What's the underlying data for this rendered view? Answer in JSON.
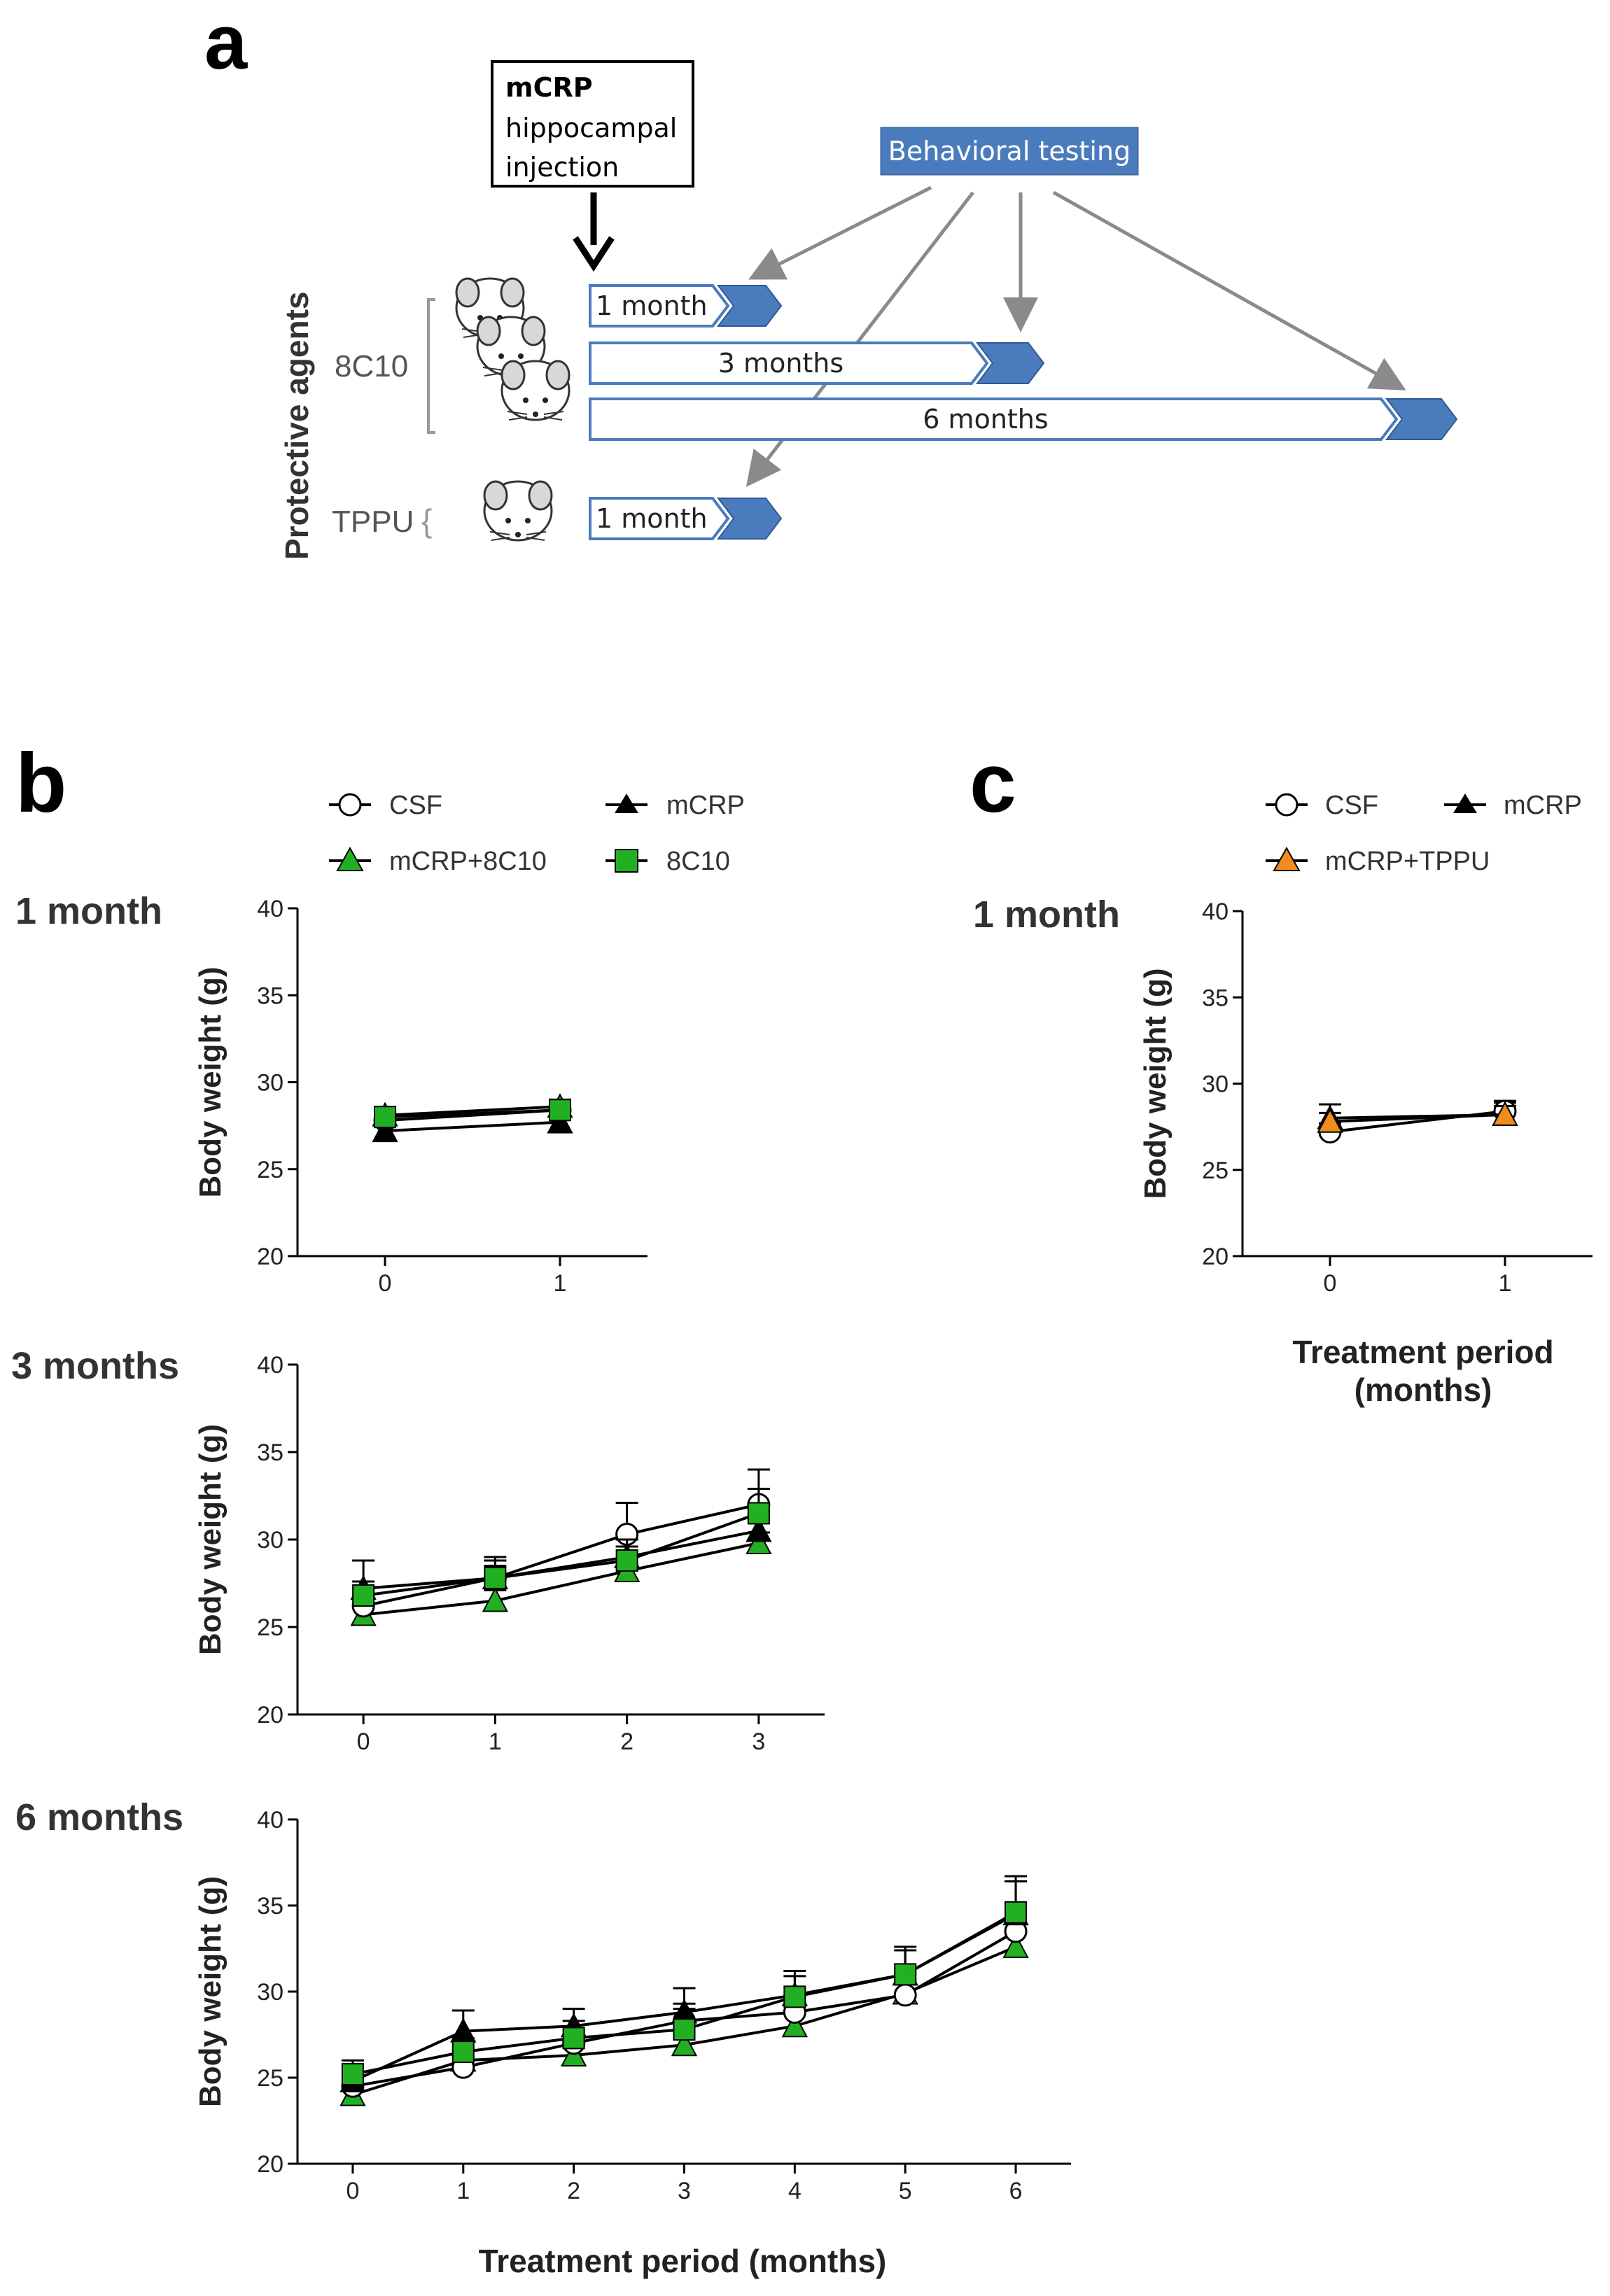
{
  "panels": {
    "a": "a",
    "b": "b",
    "c": "c"
  },
  "schematic": {
    "injection_title": "mCRP",
    "injection_line2": "hippocampal",
    "injection_line3": "injection",
    "behavioral_label": "Behavioral testing",
    "group_title": "Protective agents",
    "agent_8c10": "8C10",
    "agent_tppu": "TPPU",
    "bars": [
      "1 month",
      "3 months",
      "6 months",
      "1 month"
    ],
    "colors": {
      "arrow_blue": "#4a7bbd",
      "box_blue": "#4a7bbd",
      "gray_arrow": "#8a8a8a"
    }
  },
  "legend_b": {
    "csf": "CSF",
    "mcrp": "mCRP",
    "mcrp_8c10": "mCRP+8C10",
    "c8c10": "8C10"
  },
  "legend_c": {
    "csf": "CSF",
    "mcrp": "mCRP",
    "mcrp_tppu": "mCRP+TPPU"
  },
  "row_labels": {
    "b1": "1 month",
    "b3": "3 months",
    "b6": "6 months",
    "c1": "1 month"
  },
  "axis": {
    "ylabel": "Body weight (g)",
    "xlabel_b": "Treatment period (months)",
    "xlabel_c_line1": "Treatment period",
    "xlabel_c_line2": "(months)"
  },
  "series_colors": {
    "green": "#22b022",
    "orange": "#f08c1e",
    "black": "#000000",
    "white": "#ffffff"
  },
  "chart_data": [
    {
      "id": "b1",
      "type": "line",
      "title": "1 month",
      "xlabel": "",
      "ylabel": "Body weight (g)",
      "x": [
        0,
        1
      ],
      "ylim": [
        20,
        40
      ],
      "yticks": [
        20,
        25,
        30,
        35,
        40
      ],
      "series": [
        {
          "name": "CSF",
          "values": [
            27.8,
            28.4
          ],
          "err": [
            0.4,
            0.4
          ]
        },
        {
          "name": "mCRP",
          "values": [
            27.2,
            27.7
          ],
          "err": [
            0.4,
            0.4
          ]
        },
        {
          "name": "mCRP+8C10",
          "values": [
            28.1,
            28.6
          ],
          "err": [
            0.4,
            0.4
          ]
        },
        {
          "name": "8C10",
          "values": [
            28.0,
            28.4
          ],
          "err": [
            0.4,
            0.4
          ]
        }
      ]
    },
    {
      "id": "b3",
      "type": "line",
      "title": "3 months",
      "xlabel": "",
      "ylabel": "Body weight (g)",
      "x": [
        0,
        1,
        2,
        3
      ],
      "ylim": [
        20,
        40
      ],
      "yticks": [
        20,
        25,
        30,
        35,
        40
      ],
      "series": [
        {
          "name": "CSF",
          "values": [
            26.2,
            27.8,
            30.3,
            32.0
          ],
          "err": [
            1.0,
            0.7,
            1.8,
            2.0
          ]
        },
        {
          "name": "mCRP",
          "values": [
            27.2,
            27.8,
            29.0,
            30.5
          ],
          "err": [
            1.6,
            1.2,
            1.0,
            1.2
          ]
        },
        {
          "name": "mCRP+8C10",
          "values": [
            25.7,
            26.5,
            28.2,
            29.8
          ],
          "err": [
            0.6,
            0.6,
            0.6,
            0.6
          ]
        },
        {
          "name": "8C10",
          "values": [
            26.8,
            27.8,
            28.8,
            31.5
          ],
          "err": [
            0.8,
            1.0,
            0.8,
            1.4
          ]
        }
      ]
    },
    {
      "id": "b6",
      "type": "line",
      "title": "6 months",
      "xlabel": "Treatment period (months)",
      "ylabel": "Body weight (g)",
      "x": [
        0,
        1,
        2,
        3,
        4,
        5,
        6
      ],
      "ylim": [
        20,
        40
      ],
      "yticks": [
        20,
        25,
        30,
        35,
        40
      ],
      "series": [
        {
          "name": "CSF",
          "values": [
            24.5,
            25.6,
            27.0,
            28.3,
            28.8,
            29.8,
            33.5
          ],
          "err": [
            0.8,
            0.6,
            0.8,
            1.0,
            1.0,
            1.2,
            1.6
          ]
        },
        {
          "name": "mCRP",
          "values": [
            24.8,
            27.7,
            28.0,
            28.8,
            29.8,
            31.0,
            34.5
          ],
          "err": [
            0.8,
            1.2,
            1.0,
            1.4,
            1.4,
            1.6,
            2.2
          ]
        },
        {
          "name": "mCRP+8C10",
          "values": [
            24.0,
            26.0,
            26.3,
            26.9,
            28.0,
            29.9,
            32.6
          ],
          "err": [
            0.6,
            0.6,
            0.6,
            0.6,
            0.8,
            0.8,
            1.0
          ]
        },
        {
          "name": "8C10",
          "values": [
            25.2,
            26.5,
            27.3,
            27.8,
            29.7,
            31.0,
            34.6
          ],
          "err": [
            0.8,
            0.8,
            1.0,
            1.2,
            1.2,
            1.4,
            1.8
          ]
        }
      ]
    },
    {
      "id": "c1",
      "type": "line",
      "title": "1 month",
      "xlabel": "Treatment period (months)",
      "ylabel": "Body weight (g)",
      "x": [
        0,
        1
      ],
      "ylim": [
        20,
        40
      ],
      "yticks": [
        20,
        25,
        30,
        35,
        40
      ],
      "series": [
        {
          "name": "CSF",
          "values": [
            27.2,
            28.4
          ],
          "err": [
            0.5,
            0.5
          ]
        },
        {
          "name": "mCRP",
          "values": [
            28.0,
            28.2
          ],
          "err": [
            0.8,
            0.8
          ]
        },
        {
          "name": "mCRP+TPPU",
          "values": [
            27.8,
            28.2
          ],
          "err": [
            0.5,
            0.5
          ]
        }
      ]
    }
  ]
}
